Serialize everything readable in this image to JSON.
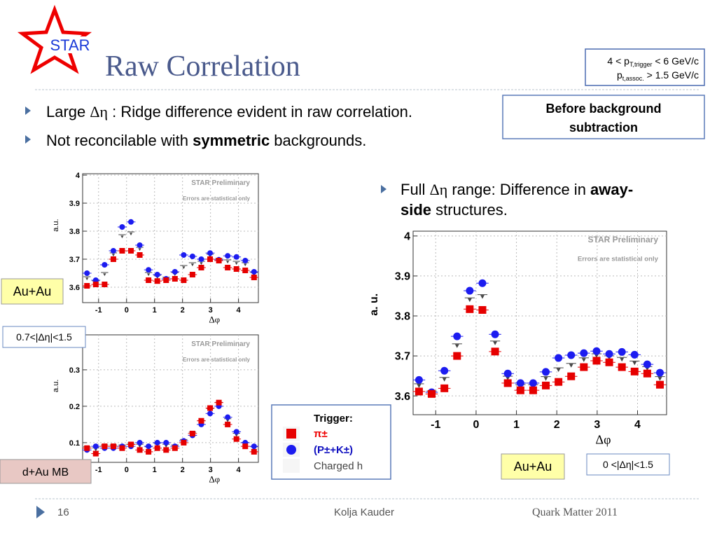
{
  "header": {
    "logo": "STAR",
    "title": "Raw Correlation",
    "kinematics": {
      "line1": [
        "4 < p",
        "T,trigger",
        " < 6 GeV/c"
      ],
      "line2": [
        "p",
        "t,assoc.",
        " > 1.5 GeV/c"
      ]
    },
    "note": [
      "Before background",
      "subtraction"
    ]
  },
  "bullets": [
    {
      "parts": [
        "Large ",
        "Δη",
        " : Ridge difference evident in raw correlation."
      ]
    },
    {
      "parts": [
        "Not reconcilable with ",
        "symmetric",
        " backgrounds."
      ]
    }
  ],
  "side_bullet": {
    "lines": [
      [
        "Full ",
        "Δη",
        " range:  Difference in ",
        "away-"
      ],
      [
        "side",
        " structures."
      ]
    ]
  },
  "labels": {
    "auau_top": "Au+Au",
    "eta_top": "0.7<|Δη|<1.5",
    "dau": "d+Au MB",
    "auau_big": "Au+Au",
    "eta_big": "0 <|Δη|<1.5"
  },
  "legend": {
    "title": "Trigger:",
    "items": [
      {
        "name": "π±",
        "color": "#e60000",
        "marker": "square"
      },
      {
        "name": "(P±+K±)",
        "color": "#1c1cf0",
        "marker": "circle"
      },
      {
        "name": "Charged h",
        "color": "#444444",
        "marker": "none"
      }
    ]
  },
  "chart_data": [
    {
      "type": "scatter",
      "preliminary": "STAR Preliminary",
      "errors_note": "Errors are statistical only",
      "x_label": "Δφ",
      "y_label": "a.u.",
      "grid": true,
      "xlim": [
        -1.57,
        4.71
      ],
      "xticks": [
        -1,
        0,
        1,
        2,
        3,
        4
      ],
      "ylim": [
        3.545,
        4.005
      ],
      "yticks": [
        3.6,
        3.7,
        3.8,
        3.9,
        4
      ],
      "x": [
        -1.414,
        -1.1,
        -0.785,
        -0.471,
        -0.157,
        0.157,
        0.471,
        0.785,
        1.1,
        1.414,
        1.728,
        2.042,
        2.356,
        2.67,
        2.985,
        3.299,
        3.613,
        3.927,
        4.241,
        4.555
      ],
      "series": [
        {
          "color": "#444444",
          "marker": "triangle",
          "values": [
            3.63,
            3.615,
            3.645,
            3.715,
            3.78,
            3.79,
            3.735,
            3.645,
            3.635,
            3.628,
            3.645,
            3.67,
            3.68,
            3.685,
            3.71,
            3.695,
            3.69,
            3.685,
            3.68,
            3.645
          ]
        },
        {
          "color": "#1c1cf0",
          "marker": "circle",
          "values": [
            3.65,
            3.625,
            3.68,
            3.73,
            3.815,
            3.833,
            3.75,
            3.662,
            3.645,
            3.63,
            3.655,
            3.715,
            3.71,
            3.7,
            3.722,
            3.698,
            3.712,
            3.708,
            3.695,
            3.655
          ]
        },
        {
          "color": "#e60000",
          "marker": "square",
          "values": [
            3.605,
            3.61,
            3.61,
            3.7,
            3.73,
            3.73,
            3.715,
            3.625,
            3.622,
            3.625,
            3.63,
            3.625,
            3.645,
            3.67,
            3.7,
            3.695,
            3.67,
            3.665,
            3.66,
            3.635
          ]
        }
      ]
    },
    {
      "type": "scatter",
      "preliminary": "STAR Preliminary",
      "errors_note": "Errors are statistical only",
      "x_label": "Δφ",
      "y_label": "a.u.",
      "grid": true,
      "xlim": [
        -1.57,
        4.71
      ],
      "xticks": [
        -1,
        0,
        1,
        2,
        3,
        4
      ],
      "ylim": [
        0.046,
        0.396
      ],
      "yticks": [
        0.1,
        0.2,
        0.3
      ],
      "x": [
        -1.414,
        -1.1,
        -0.785,
        -0.471,
        -0.157,
        0.157,
        0.471,
        0.785,
        1.1,
        1.414,
        1.728,
        2.042,
        2.356,
        2.67,
        2.985,
        3.299,
        3.613,
        3.927,
        4.241,
        4.555
      ],
      "series": [
        {
          "color": "#444444",
          "marker": "triangle",
          "values": [
            0.083,
            0.08,
            0.088,
            0.088,
            0.088,
            0.093,
            0.09,
            0.083,
            0.093,
            0.09,
            0.088,
            0.103,
            0.123,
            0.155,
            0.188,
            0.205,
            0.16,
            0.12,
            0.095,
            0.083
          ]
        },
        {
          "color": "#1c1cf0",
          "marker": "circle",
          "values": [
            0.08,
            0.09,
            0.085,
            0.085,
            0.09,
            0.09,
            0.1,
            0.09,
            0.1,
            0.1,
            0.09,
            0.105,
            0.12,
            0.15,
            0.18,
            0.2,
            0.17,
            0.13,
            0.1,
            0.09
          ]
        },
        {
          "color": "#e60000",
          "marker": "square",
          "values": [
            0.085,
            0.07,
            0.09,
            0.09,
            0.085,
            0.095,
            0.08,
            0.075,
            0.085,
            0.08,
            0.085,
            0.1,
            0.125,
            0.16,
            0.195,
            0.21,
            0.15,
            0.11,
            0.09,
            0.075
          ]
        }
      ]
    },
    {
      "type": "scatter",
      "preliminary": "STAR Preliminary",
      "errors_note": "Errors are statistical only",
      "x_label": "Δφ",
      "y_label": "a. u.",
      "grid": true,
      "xlim": [
        -1.56,
        4.72
      ],
      "xticks": [
        -1,
        0,
        1,
        2,
        3,
        4
      ],
      "ylim": [
        3.553,
        4.012
      ],
      "yticks": [
        3.6,
        3.7,
        3.8,
        3.9,
        4
      ],
      "x": [
        -1.414,
        -1.1,
        -0.785,
        -0.471,
        -0.157,
        0.157,
        0.471,
        0.785,
        1.1,
        1.414,
        1.728,
        2.042,
        2.356,
        2.67,
        2.985,
        3.299,
        3.613,
        3.927,
        4.241,
        4.555
      ],
      "series": [
        {
          "color": "#444444",
          "marker": "triangle",
          "values": [
            3.625,
            3.607,
            3.641,
            3.725,
            3.84,
            3.848,
            3.732,
            3.644,
            3.623,
            3.623,
            3.643,
            3.665,
            3.676,
            3.69,
            3.7,
            3.695,
            3.691,
            3.682,
            3.668,
            3.643
          ]
        },
        {
          "color": "#1c1cf0",
          "marker": "circle",
          "values": [
            3.64,
            3.609,
            3.663,
            3.749,
            3.863,
            3.882,
            3.754,
            3.656,
            3.632,
            3.632,
            3.66,
            3.695,
            3.702,
            3.707,
            3.712,
            3.705,
            3.71,
            3.703,
            3.679,
            3.658
          ]
        },
        {
          "color": "#e60000",
          "marker": "square",
          "values": [
            3.611,
            3.605,
            3.619,
            3.7,
            3.817,
            3.815,
            3.711,
            3.632,
            3.614,
            3.614,
            3.626,
            3.635,
            3.649,
            3.672,
            3.688,
            3.684,
            3.672,
            3.661,
            3.656,
            3.628
          ]
        }
      ]
    }
  ],
  "footer": {
    "page": "16",
    "author": "Kolja Kauder",
    "event": "Quark Matter 2011"
  }
}
